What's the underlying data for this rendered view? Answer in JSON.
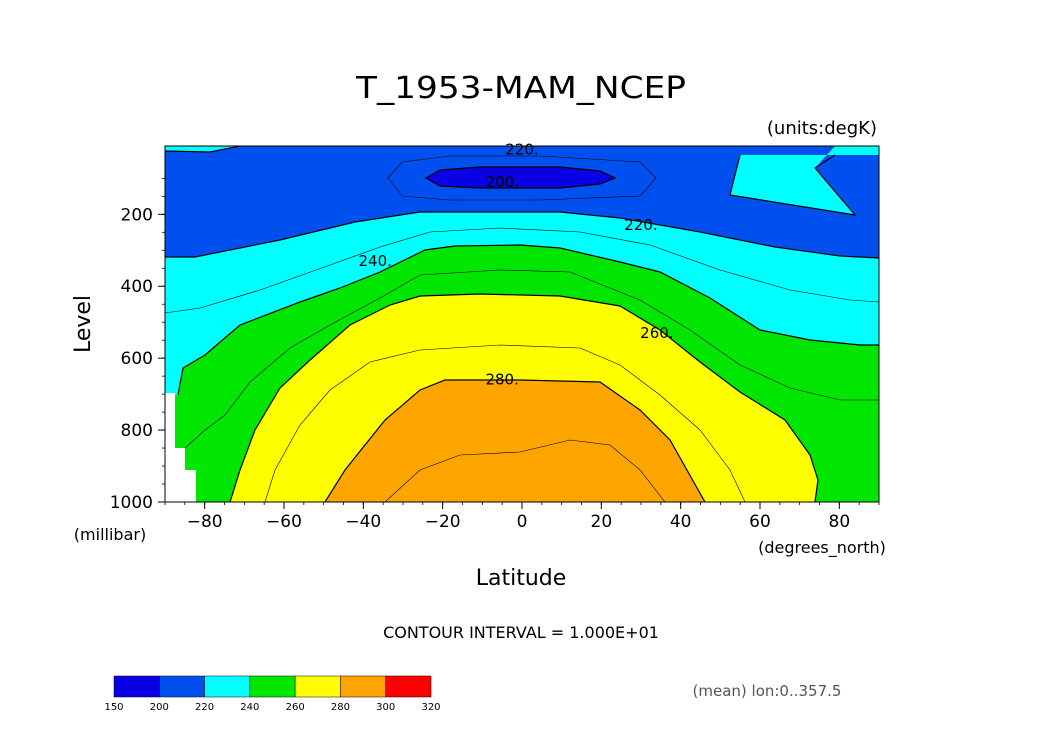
{
  "chart_data": {
    "type": "contour",
    "title": "T_1953-MAM_NCEP",
    "units_label": "(units:degK)",
    "xlabel": "Latitude",
    "ylabel": "Level",
    "x_units": "(degrees_north)",
    "y_units": "(millibar)",
    "xlim": [
      -90,
      90
    ],
    "ylim": [
      1000,
      10
    ],
    "x_ticks": [
      -80,
      -60,
      -40,
      -20,
      0,
      20,
      40,
      60,
      80
    ],
    "x_tick_labels": [
      "−80",
      "−60",
      "−40",
      "−20",
      "0",
      "20",
      "40",
      "60",
      "80"
    ],
    "y_ticks": [
      200,
      400,
      600,
      800,
      1000
    ],
    "y_tick_labels": [
      "200",
      "400",
      "600",
      "800",
      "1000"
    ],
    "contour_interval_text": "CONTOUR INTERVAL = 1.000E+01",
    "contour_labels": [
      {
        "text": "220.",
        "lat": 0,
        "level": 20
      },
      {
        "text": "200.",
        "lat": -5,
        "level": 110
      },
      {
        "text": "220.",
        "lat": 30,
        "level": 230
      },
      {
        "text": "240.",
        "lat": -37,
        "level": 330
      },
      {
        "text": "260.",
        "lat": 34,
        "level": 530
      },
      {
        "text": "280.",
        "lat": -5,
        "level": 660
      }
    ],
    "level_colors": [
      {
        "range": [
          150,
          200
        ],
        "color": "#0a00e6"
      },
      {
        "range": [
          200,
          220
        ],
        "color": "#0050f0"
      },
      {
        "range": [
          220,
          240
        ],
        "color": "#00ffff"
      },
      {
        "range": [
          240,
          260
        ],
        "color": "#00e600"
      },
      {
        "range": [
          260,
          280
        ],
        "color": "#ffff00"
      },
      {
        "range": [
          280,
          300
        ],
        "color": "#ffa500"
      },
      {
        "range": [
          300,
          320
        ],
        "color": "#ff0000"
      }
    ],
    "colorbar_labels": [
      "150",
      "200",
      "220",
      "240",
      "260",
      "280",
      "300",
      "320"
    ],
    "footer_note": "(mean) lon:0..357.5"
  }
}
